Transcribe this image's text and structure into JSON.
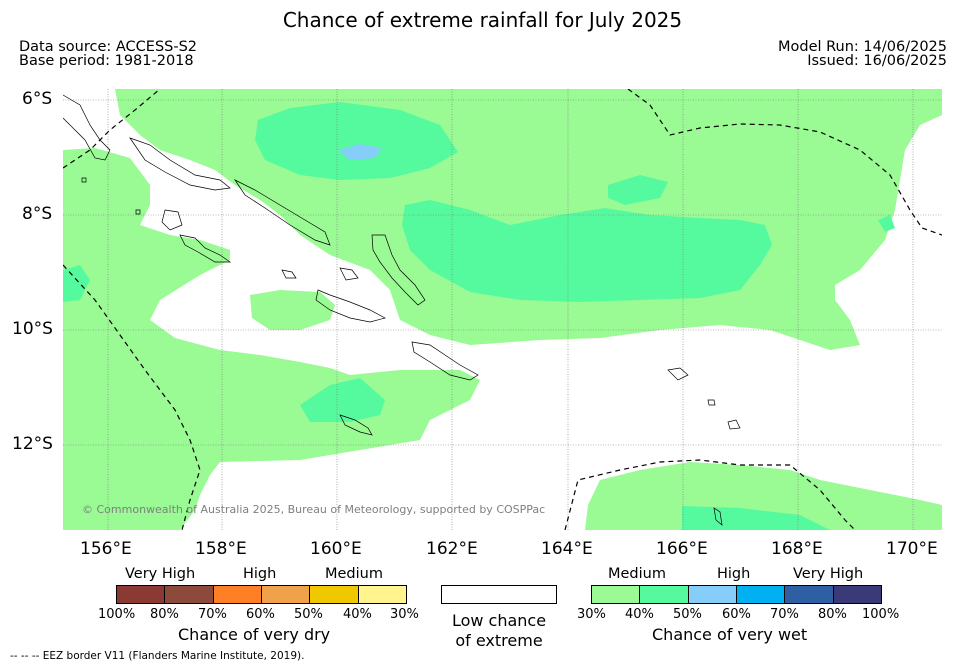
{
  "title": "Chance of extreme rainfall for July 2025",
  "meta": {
    "data_source": "Data source: ACCESS-S2",
    "base_period": "Base period: 1981-2018",
    "model_run": "Model Run: 14/06/2025",
    "issued": "Issued: 16/06/2025"
  },
  "map": {
    "lat_labels": [
      "6°S",
      "8°S",
      "10°S",
      "12°S"
    ],
    "lon_labels": [
      "156°E",
      "158°E",
      "160°E",
      "162°E",
      "164°E",
      "166°E",
      "168°E",
      "170°E"
    ],
    "copyright": "© Commonwealth of Australia 2025, Bureau of Meteorology, supported by COSPPac",
    "colors": {
      "medium_wet": "#9afa94",
      "high_wet_30": "#56fa9e",
      "high_wet_50": "#86cefa",
      "land_outline": "#000000"
    }
  },
  "legend": {
    "dry": {
      "categories": [
        "Very High",
        "High",
        "Medium"
      ],
      "ticks": [
        "100%",
        "80%",
        "70%",
        "60%",
        "50%",
        "40%",
        "30%"
      ],
      "caption": "Chance of very dry",
      "colors": [
        "#8b3a33",
        "#8b4a3a",
        "#ff7f27",
        "#f0a24b",
        "#f0c800",
        "#fff48d"
      ]
    },
    "low": {
      "caption_line1": "Low chance",
      "caption_line2": "of extreme"
    },
    "wet": {
      "categories": [
        "Medium",
        "High",
        "Very High"
      ],
      "ticks": [
        "30%",
        "40%",
        "50%",
        "60%",
        "70%",
        "80%",
        "100%"
      ],
      "caption": "Chance of very wet",
      "colors": [
        "#9afa94",
        "#56fa9e",
        "#86cefa",
        "#00b0f0",
        "#2e5fa3",
        "#3a3a78"
      ]
    }
  },
  "eez_note": "--  --  -- EEZ border V11 (Flanders Marine Institute, 2019)."
}
